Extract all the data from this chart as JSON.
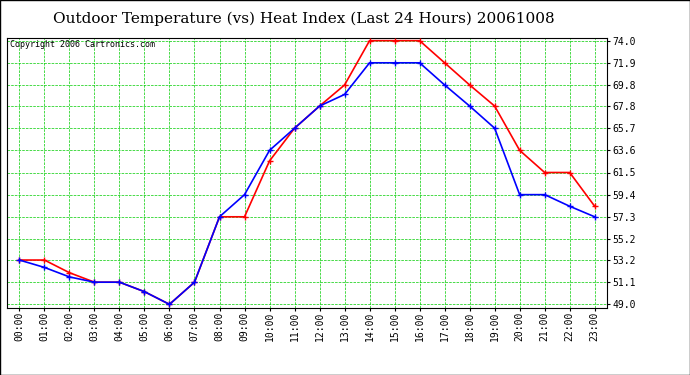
{
  "title": "Outdoor Temperature (vs) Heat Index (Last 24 Hours) 20061008",
  "copyright": "Copyright 2006 Cartronics.com",
  "hours": [
    "00:00",
    "01:00",
    "02:00",
    "03:00",
    "04:00",
    "05:00",
    "06:00",
    "07:00",
    "08:00",
    "09:00",
    "10:00",
    "11:00",
    "12:00",
    "13:00",
    "14:00",
    "15:00",
    "16:00",
    "17:00",
    "18:00",
    "19:00",
    "20:00",
    "21:00",
    "22:00",
    "23:00"
  ],
  "temp": [
    53.2,
    53.2,
    52.0,
    51.1,
    51.1,
    50.2,
    49.0,
    51.1,
    57.3,
    57.3,
    62.6,
    65.7,
    67.8,
    69.8,
    74.0,
    74.0,
    74.0,
    71.9,
    69.8,
    67.8,
    63.6,
    61.5,
    61.5,
    58.3
  ],
  "heat_index": [
    53.2,
    52.5,
    51.6,
    51.1,
    51.1,
    50.2,
    49.0,
    51.1,
    57.3,
    59.4,
    63.6,
    65.7,
    67.8,
    68.9,
    71.9,
    71.9,
    71.9,
    69.8,
    67.8,
    65.7,
    59.4,
    59.4,
    58.3,
    57.3
  ],
  "temp_color": "#FF0000",
  "heat_index_color": "#0000FF",
  "grid_color": "#00CC00",
  "bg_color": "#FFFFFF",
  "plot_bg": "#FFFFFF",
  "ylim_min": 49.0,
  "ylim_max": 74.0,
  "yticks": [
    49.0,
    51.1,
    53.2,
    55.2,
    57.3,
    59.4,
    61.5,
    63.6,
    65.7,
    67.8,
    69.8,
    71.9,
    74.0
  ],
  "marker": "+",
  "linewidth": 1.2,
  "title_fontsize": 11,
  "tick_fontsize": 7,
  "copyright_fontsize": 6
}
